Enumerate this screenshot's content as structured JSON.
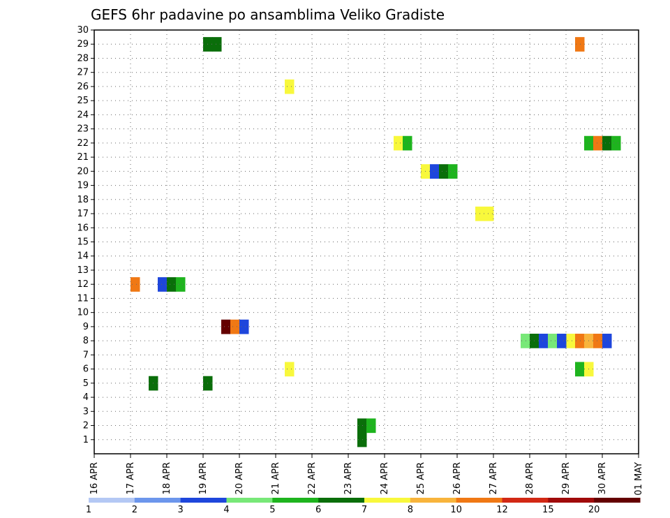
{
  "chart_data": {
    "type": "heatmap",
    "title": "GEFS 6hr padavine po ansamblima Veliko Gradiste",
    "x_tick_labels": [
      "16 APR",
      "17 APR",
      "18 APR",
      "19 APR",
      "20 APR",
      "21 APR",
      "22 APR",
      "23 APR",
      "24 APR",
      "25 APR",
      "26 APR",
      "27 APR",
      "28 APR",
      "29 APR",
      "30 APR",
      "01 MAY"
    ],
    "y_tick_labels": [
      "1",
      "2",
      "3",
      "4",
      "5",
      "6",
      "7",
      "8",
      "9",
      "10",
      "11",
      "12",
      "13",
      "14",
      "15",
      "16",
      "17",
      "18",
      "19",
      "20",
      "21",
      "22",
      "23",
      "24",
      "25",
      "26",
      "27",
      "28",
      "29",
      "30"
    ],
    "x_range_steps": [
      0,
      60
    ],
    "y_range": [
      0,
      30
    ],
    "grid": true,
    "colorbar": {
      "labels": [
        "1",
        "2",
        "3",
        "4",
        "5",
        "6",
        "7",
        "8",
        "10",
        "12",
        "15",
        "20"
      ],
      "colors": [
        "#b4c8f4",
        "#6c96ec",
        "#1e46dc",
        "#78e878",
        "#1eb41e",
        "#0a6e0a",
        "#f8f83c",
        "#f8b43c",
        "#f07814",
        "#d22814",
        "#a00a0a",
        "#640000"
      ]
    },
    "cells": [
      {
        "t": 29,
        "m": 1,
        "v": 6
      },
      {
        "t": 29,
        "m": 2,
        "v": 6
      },
      {
        "t": 30,
        "m": 2,
        "v": 5
      },
      {
        "t": 14,
        "m": 9,
        "v": 20
      },
      {
        "t": 15,
        "m": 9,
        "v": 10
      },
      {
        "t": 16,
        "m": 9,
        "v": 3
      },
      {
        "t": 4,
        "m": 12,
        "v": 10
      },
      {
        "t": 7,
        "m": 12,
        "v": 3
      },
      {
        "t": 8,
        "m": 12,
        "v": 6
      },
      {
        "t": 9,
        "m": 12,
        "v": 5
      },
      {
        "t": 6,
        "m": 5,
        "v": 6
      },
      {
        "t": 12,
        "m": 5,
        "v": 6
      },
      {
        "t": 21,
        "m": 6,
        "v": 7
      },
      {
        "t": 53,
        "m": 6,
        "v": 5
      },
      {
        "t": 54,
        "m": 6,
        "v": 7
      },
      {
        "t": 52,
        "m": 8,
        "v": 7
      },
      {
        "t": 53,
        "m": 8,
        "v": 10
      },
      {
        "t": 54,
        "m": 8,
        "v": 8
      },
      {
        "t": 55,
        "m": 8,
        "v": 10
      },
      {
        "t": 56,
        "m": 8,
        "v": 3
      },
      {
        "t": 47,
        "m": 8,
        "v": 4
      },
      {
        "t": 48,
        "m": 8,
        "v": 6
      },
      {
        "t": 49,
        "m": 8,
        "v": 3
      },
      {
        "t": 50,
        "m": 8,
        "v": 4
      },
      {
        "t": 51,
        "m": 8,
        "v": 3
      },
      {
        "t": 54,
        "m": 22,
        "v": 5
      },
      {
        "t": 55,
        "m": 22,
        "v": 10
      },
      {
        "t": 56,
        "m": 22,
        "v": 6
      },
      {
        "t": 57,
        "m": 22,
        "v": 5
      },
      {
        "t": 53,
        "m": 29,
        "v": 10
      },
      {
        "t": 21,
        "m": 26,
        "v": 7
      },
      {
        "t": 36,
        "m": 20,
        "v": 7
      },
      {
        "t": 37,
        "m": 20,
        "v": 3
      },
      {
        "t": 38,
        "m": 20,
        "v": 6
      },
      {
        "t": 39,
        "m": 20,
        "v": 5
      },
      {
        "t": 42,
        "m": 17,
        "v": 7
      },
      {
        "t": 43,
        "m": 17,
        "v": 7
      },
      {
        "t": 33,
        "m": 22,
        "v": 7
      },
      {
        "t": 34,
        "m": 22,
        "v": 5
      },
      {
        "t": 12,
        "m": 29,
        "v": 6
      },
      {
        "t": 13,
        "m": 29,
        "v": 6
      }
    ]
  }
}
